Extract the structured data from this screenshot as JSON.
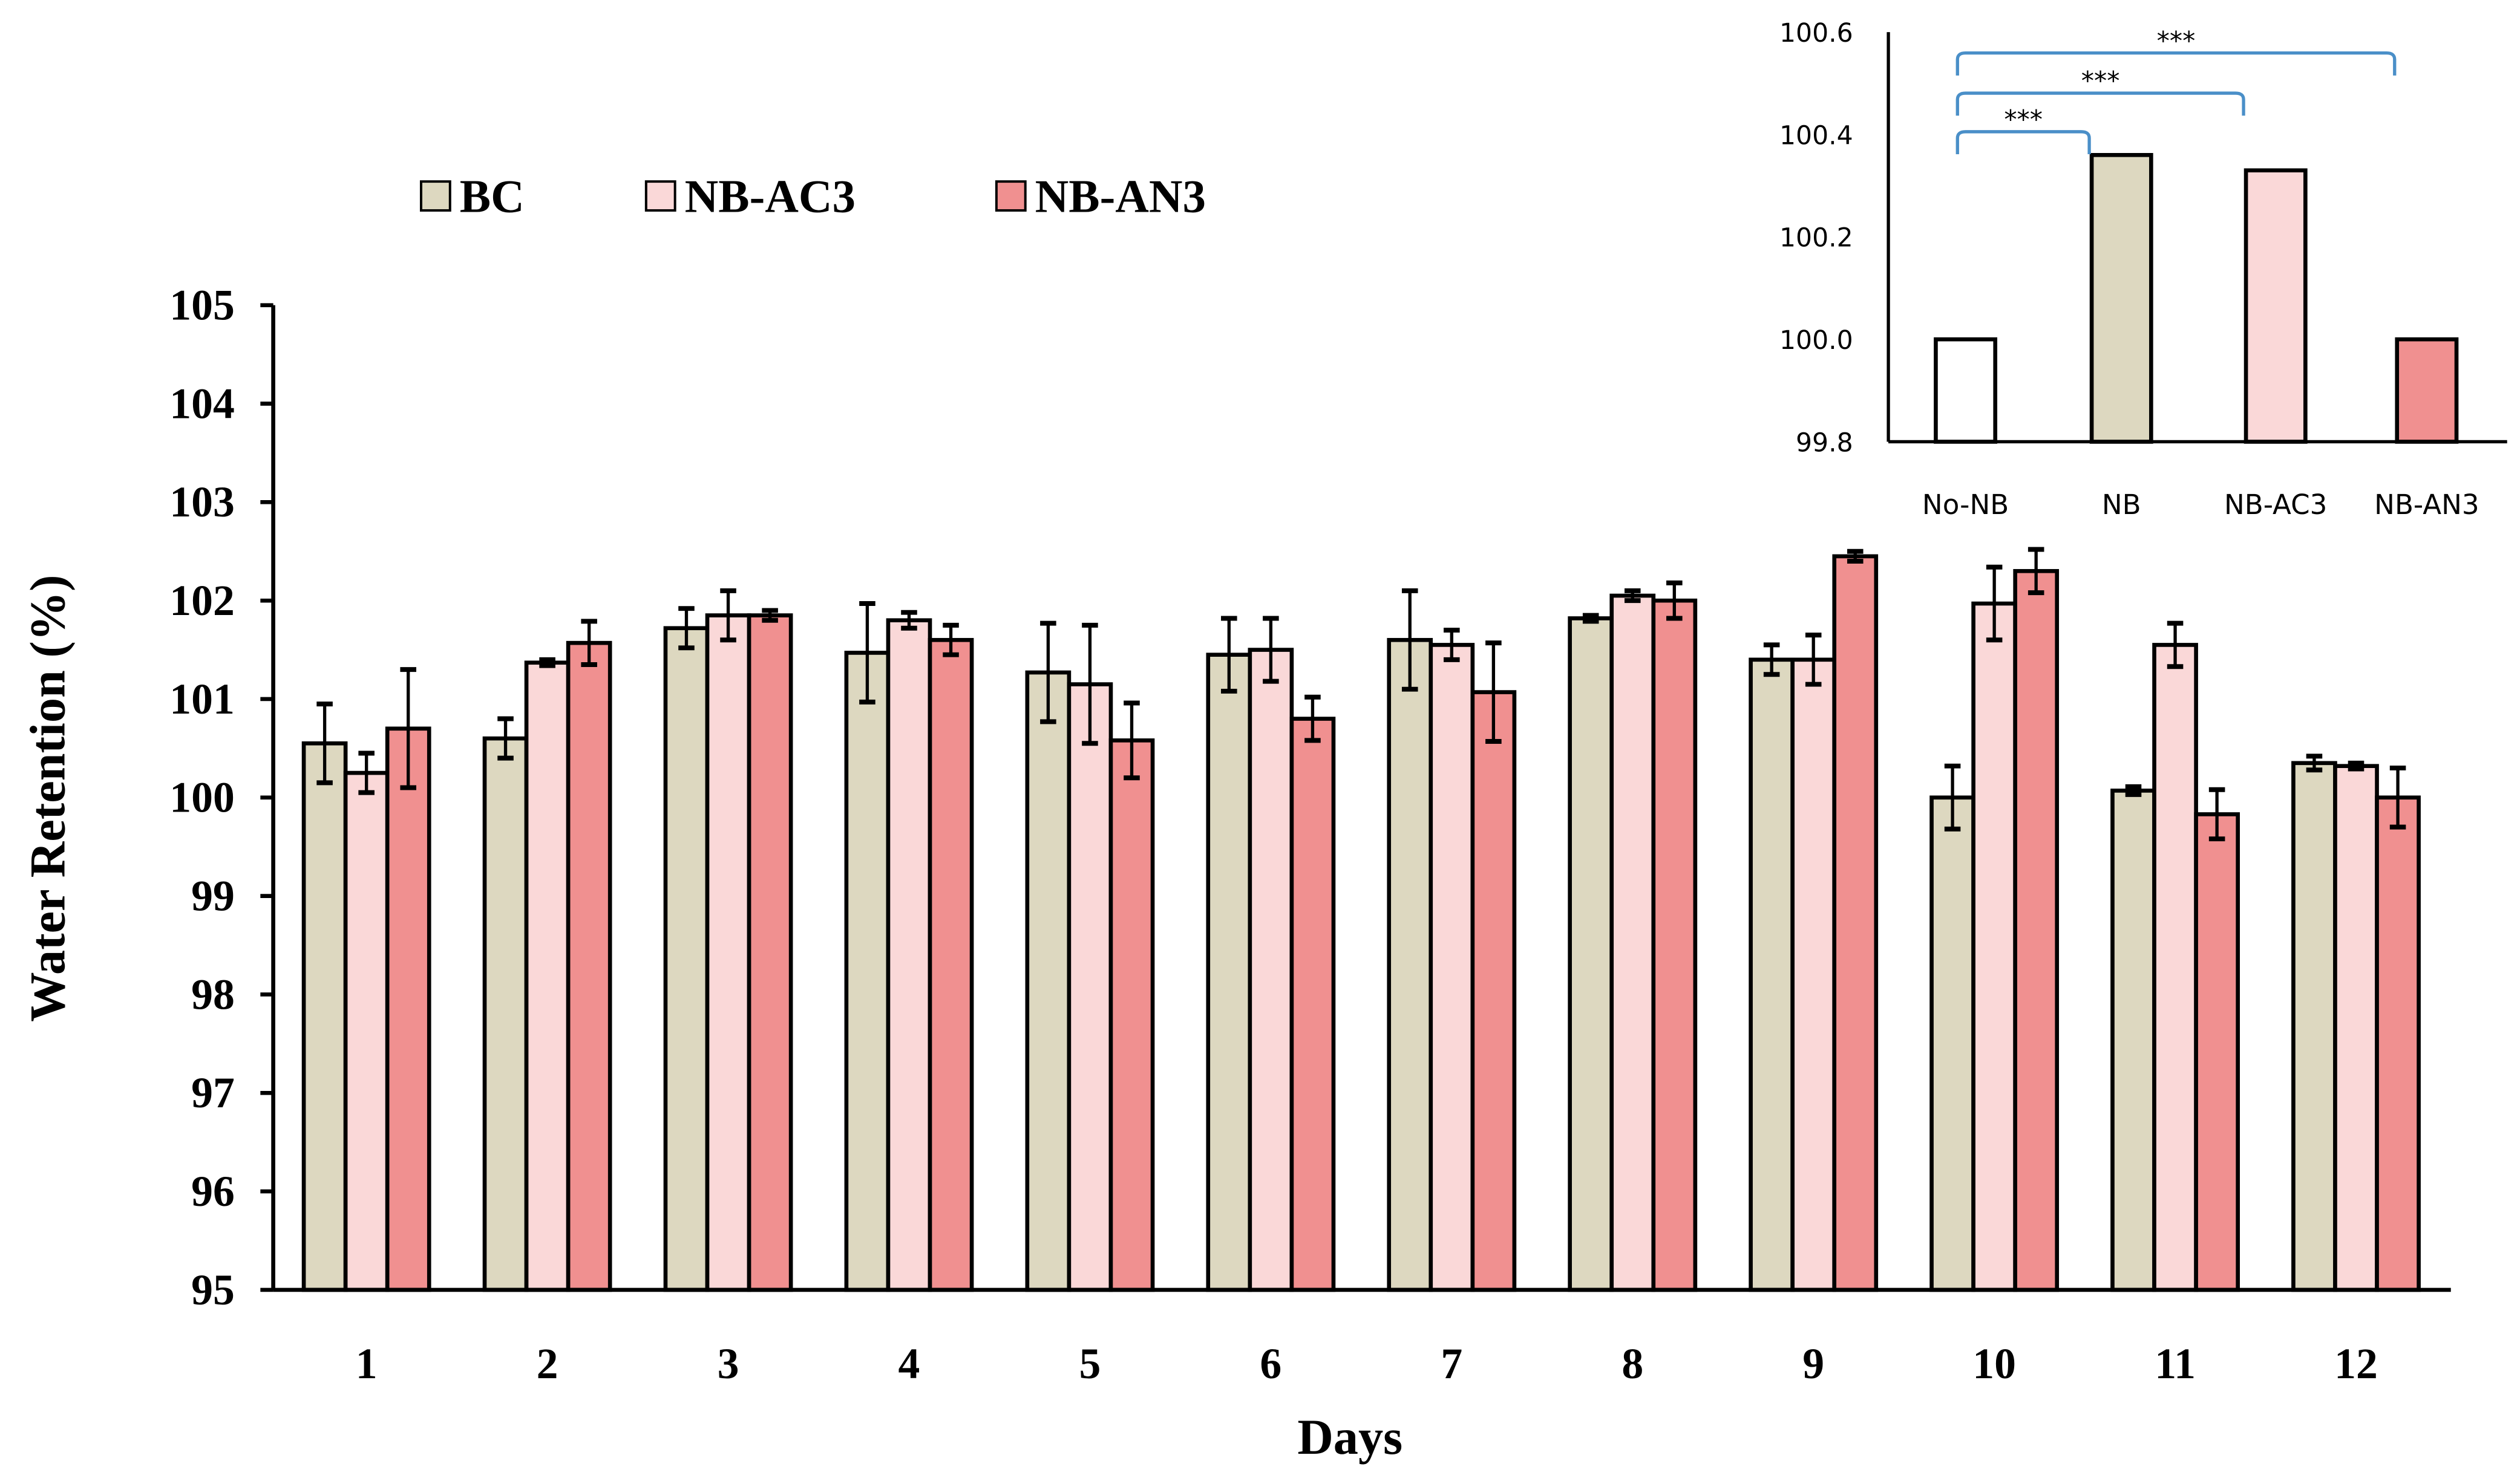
{
  "chart_data": [
    {
      "type": "bar",
      "title": "",
      "xlabel": "Days",
      "ylabel": "Water Retention (%)",
      "ylim": [
        95,
        105
      ],
      "yticks": [
        "95",
        "96",
        "97",
        "98",
        "99",
        "100",
        "101",
        "102",
        "103",
        "104",
        "105"
      ],
      "categories": [
        "1",
        "2",
        "3",
        "4",
        "5",
        "6",
        "7",
        "8",
        "9",
        "10",
        "11",
        "12"
      ],
      "legend_position": "top-left",
      "grid": false,
      "series": [
        {
          "name": "BC",
          "color": "#ddd8c0",
          "values": [
            100.55,
            100.6,
            101.72,
            101.47,
            101.27,
            101.45,
            101.6,
            101.82,
            101.4,
            100.0,
            100.07,
            100.35
          ],
          "errors": [
            0.4,
            0.2,
            0.2,
            0.5,
            0.5,
            0.37,
            0.5,
            0.03,
            0.15,
            0.32,
            0.04,
            0.07
          ]
        },
        {
          "name": "NB-AC3",
          "color": "#fad8d8",
          "values": [
            100.25,
            101.37,
            101.85,
            101.8,
            101.15,
            101.5,
            101.55,
            102.05,
            101.4,
            101.97,
            101.55,
            100.32
          ],
          "errors": [
            0.2,
            0.03,
            0.25,
            0.08,
            0.6,
            0.32,
            0.15,
            0.05,
            0.25,
            0.37,
            0.22,
            0.03
          ]
        },
        {
          "name": "NB-AN3",
          "color": "#f09090",
          "values": [
            100.7,
            101.57,
            101.85,
            101.6,
            100.58,
            100.8,
            101.07,
            102.0,
            102.45,
            102.3,
            99.83,
            100.0
          ],
          "errors": [
            0.6,
            0.22,
            0.05,
            0.15,
            0.38,
            0.22,
            0.5,
            0.18,
            0.05,
            0.22,
            0.25,
            0.3
          ]
        }
      ]
    },
    {
      "type": "bar",
      "title": "",
      "position": "inset top-right",
      "ylim": [
        99.8,
        100.6
      ],
      "yticks": [
        "99.8",
        "100.0",
        "100.2",
        "100.4",
        "100.6"
      ],
      "categories": [
        "No-NB",
        "NB",
        "NB-AC3",
        "NB-AN3"
      ],
      "values": [
        100.0,
        100.36,
        100.33,
        100.0
      ],
      "colors": [
        "#ffffff",
        "#ddd8c0",
        "#fad8d8",
        "#f09090"
      ],
      "significance": [
        {
          "from": "No-NB",
          "to": "NB",
          "label": "***"
        },
        {
          "from": "No-NB",
          "to": "NB-AC3",
          "label": "***"
        },
        {
          "from": "No-NB",
          "to": "NB-AN3",
          "label": "***"
        }
      ],
      "bracket_color": "#4a8fc8"
    }
  ]
}
